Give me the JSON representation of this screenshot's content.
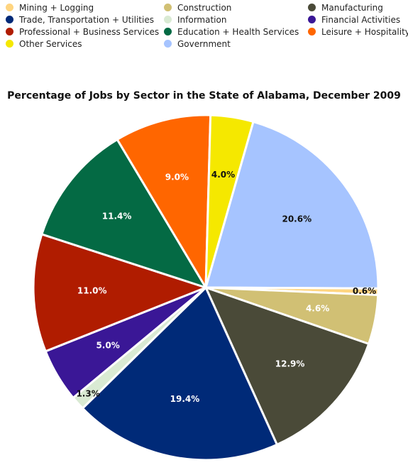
{
  "chart_data": {
    "type": "pie",
    "title": "Percentage of Jobs by Sector in the State of Alabama, December 2009",
    "legend_position": "top",
    "slices": [
      {
        "name": "Government",
        "value": 20.6,
        "label": "20.6%",
        "color": "#a6c4ff"
      },
      {
        "name": "Mining + Logging",
        "value": 0.6,
        "label": "0.6%",
        "color": "#ffd580"
      },
      {
        "name": "Construction",
        "value": 4.6,
        "label": "4.6%",
        "color": "#d1c074"
      },
      {
        "name": "Manufacturing",
        "value": 12.9,
        "label": "12.9%",
        "color": "#4a4a38"
      },
      {
        "name": "Trade, Transportation + Utilities",
        "value": 19.4,
        "label": "19.4%",
        "color": "#002a78"
      },
      {
        "name": "Information",
        "value": 1.3,
        "label": "1.3%",
        "color": "#d9ead3"
      },
      {
        "name": "Financial Activities",
        "value": 5.0,
        "label": "5.0%",
        "color": "#3a1796"
      },
      {
        "name": "Professional + Business Services",
        "value": 11.0,
        "label": "11.0%",
        "color": "#b01c00"
      },
      {
        "name": "Education + Health Services",
        "value": 11.4,
        "label": "11.4%",
        "color": "#046a44"
      },
      {
        "name": "Leisure + Hospitality",
        "value": 9.0,
        "label": "9.0%",
        "color": "#ff6600"
      },
      {
        "name": "Other Services",
        "value": 4.0,
        "label": "4.0%",
        "color": "#f5e800"
      }
    ],
    "legend": [
      {
        "name": "Mining + Logging",
        "color": "#ffd580"
      },
      {
        "name": "Construction",
        "color": "#d1c074"
      },
      {
        "name": "Manufacturing",
        "color": "#4a4a38"
      },
      {
        "name": "Trade, Transportation + Utilities",
        "color": "#002a78"
      },
      {
        "name": "Information",
        "color": "#d9ead3"
      },
      {
        "name": "Financial Activities",
        "color": "#3a1796"
      },
      {
        "name": "Professional + Business Services",
        "color": "#b01c00"
      },
      {
        "name": "Education + Health Services",
        "color": "#046a44"
      },
      {
        "name": "Leisure + Hospitality",
        "color": "#ff6600"
      },
      {
        "name": "Other Services",
        "color": "#f5e800"
      },
      {
        "name": "Government",
        "color": "#a6c4ff"
      }
    ]
  }
}
